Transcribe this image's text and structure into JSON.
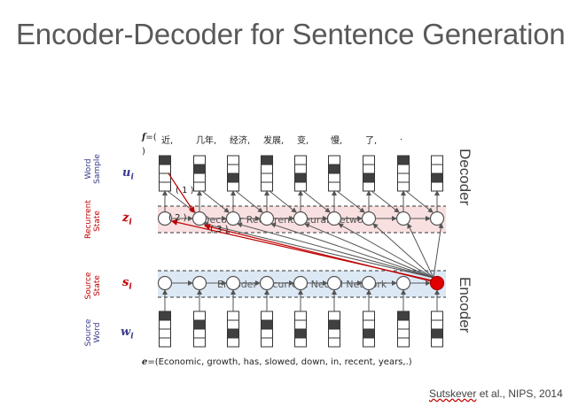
{
  "title": "Encoder-Decoder for Sentence Generation",
  "citation": {
    "authors": "Sutskever",
    "rest": " et al., NIPS, 2014"
  },
  "rows": {
    "word_sample": {
      "label": "Word Sample",
      "var": "u",
      "sub": "i"
    },
    "recurrent_state": {
      "label": "Recurrent State",
      "var": "z",
      "sub": "i"
    },
    "source_state": {
      "label": "Source State",
      "var": "s",
      "sub": "i"
    },
    "source_word": {
      "label": "Source Word",
      "var": "w",
      "sub": "i"
    }
  },
  "decoder_label": "Decoder",
  "encoder_label": "Encoder",
  "decoder_inner": "Decoder Recurrent Neural Network",
  "encoder_inner": "Encoder Recurrent Neural Network",
  "f_prefix": "f",
  "f_eq": "=(",
  "f_words": [
    "近,",
    "几年,",
    "经济,",
    "发展,",
    "变,",
    "慢,",
    "了,",
    "."
  ],
  "f_close": ")",
  "e_prefix": "e",
  "e_sentence": "=(Economic, growth, has, slowed, down, in, recent, years,.)",
  "steps": [
    "( 1 )",
    "( 2 )",
    "( 3 )"
  ],
  "colors": {
    "red": "#c00000",
    "blue": "#3a3a8c",
    "node_red": "#e00000",
    "band_red": "#f9e0e0",
    "band_blue": "#dde8f5"
  },
  "onehot_decoder": [
    0,
    1,
    2,
    0,
    2,
    1,
    2,
    0,
    2
  ],
  "onehot_encoder": [
    0,
    1,
    2,
    1,
    2,
    1,
    2,
    0,
    2
  ]
}
